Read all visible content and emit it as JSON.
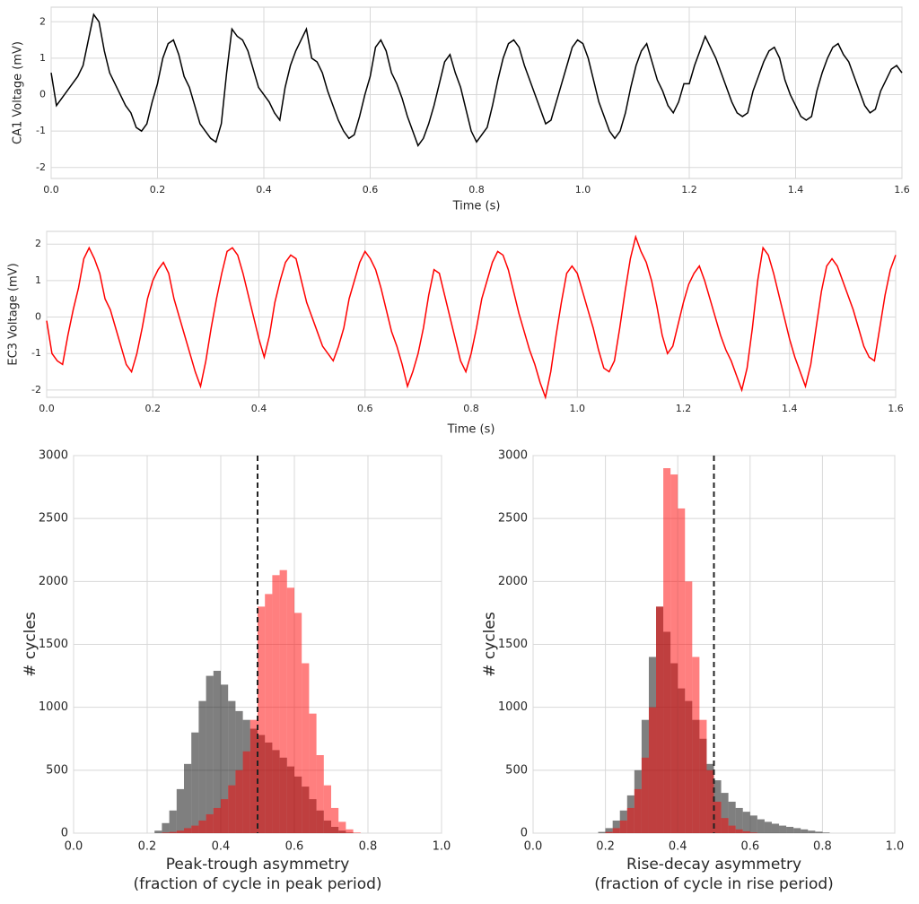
{
  "chart_data": [
    {
      "type": "line",
      "xlabel": "Time (s)",
      "ylabel": "CA1 Voltage (mV)",
      "grid": true,
      "xlim": [
        0,
        1.6
      ],
      "ylim": [
        -2.3,
        2.4
      ],
      "xticks": [
        {
          "value": 0,
          "label": "0.0"
        },
        0.2,
        0.4,
        0.6,
        0.8,
        {
          "value": 1,
          "label": "1.0"
        },
        1.2,
        1.4,
        1.6
      ],
      "yticks": [
        -2,
        -1,
        0,
        1,
        2
      ],
      "x": [
        0,
        0.01,
        0.02,
        0.03,
        0.04,
        0.05,
        0.06,
        0.07,
        0.08,
        0.09,
        0.1,
        0.11,
        0.12,
        0.13,
        0.14,
        0.15,
        0.16,
        0.17,
        0.18,
        0.19,
        0.2,
        0.21,
        0.22,
        0.23,
        0.24,
        0.25,
        0.26,
        0.27,
        0.28,
        0.29,
        0.3,
        0.31,
        0.32,
        0.33,
        0.34,
        0.35,
        0.36,
        0.37,
        0.38,
        0.39,
        0.4,
        0.41,
        0.42,
        0.43,
        0.44,
        0.45,
        0.46,
        0.47,
        0.48,
        0.49,
        0.5,
        0.51,
        0.52,
        0.53,
        0.54,
        0.55,
        0.56,
        0.57,
        0.58,
        0.59,
        0.6,
        0.61,
        0.62,
        0.63,
        0.64,
        0.65,
        0.66,
        0.67,
        0.68,
        0.69,
        0.7,
        0.71,
        0.72,
        0.73,
        0.74,
        0.75,
        0.76,
        0.77,
        0.78,
        0.79,
        0.8,
        0.81,
        0.82,
        0.83,
        0.84,
        0.85,
        0.86,
        0.87,
        0.88,
        0.89,
        0.9,
        0.91,
        0.92,
        0.93,
        0.94,
        0.95,
        0.96,
        0.97,
        0.98,
        0.99,
        1,
        1.01,
        1.02,
        1.03,
        1.04,
        1.05,
        1.06,
        1.07,
        1.08,
        1.09,
        1.1,
        1.11,
        1.12,
        1.13,
        1.14,
        1.15,
        1.16,
        1.17,
        1.18,
        1.19,
        1.2,
        1.21,
        1.22,
        1.23,
        1.24,
        1.25,
        1.26,
        1.27,
        1.28,
        1.29,
        1.3,
        1.31,
        1.32,
        1.33,
        1.34,
        1.35,
        1.36,
        1.37,
        1.38,
        1.39,
        1.4,
        1.41,
        1.42,
        1.43,
        1.44,
        1.45,
        1.46,
        1.47,
        1.48,
        1.49,
        1.5,
        1.51,
        1.52,
        1.53,
        1.54,
        1.55,
        1.56,
        1.57,
        1.58,
        1.59,
        1.6
      ],
      "series": [
        {
          "color": "#000000",
          "values": [
            0.6,
            -0.3,
            -0.1,
            0.1,
            0.3,
            0.5,
            0.8,
            1.5,
            2.2,
            2.0,
            1.2,
            0.6,
            0.3,
            0.0,
            -0.3,
            -0.5,
            -0.9,
            -1.0,
            -0.8,
            -0.2,
            0.3,
            1.0,
            1.4,
            1.5,
            1.1,
            0.5,
            0.2,
            -0.3,
            -0.8,
            -1.0,
            -1.2,
            -1.3,
            -0.8,
            0.6,
            1.8,
            1.6,
            1.5,
            1.2,
            0.7,
            0.2,
            0.0,
            -0.2,
            -0.5,
            -0.7,
            0.2,
            0.8,
            1.2,
            1.5,
            1.8,
            1.0,
            0.9,
            0.6,
            0.1,
            -0.3,
            -0.7,
            -1.0,
            -1.2,
            -1.1,
            -0.6,
            0.0,
            0.5,
            1.3,
            1.5,
            1.2,
            0.6,
            0.3,
            -0.1,
            -0.6,
            -1.0,
            -1.4,
            -1.2,
            -0.8,
            -0.3,
            0.3,
            0.9,
            1.1,
            0.6,
            0.2,
            -0.4,
            -1.0,
            -1.3,
            -1.1,
            -0.9,
            -0.3,
            0.4,
            1.0,
            1.4,
            1.5,
            1.3,
            0.8,
            0.4,
            0.0,
            -0.4,
            -0.8,
            -0.7,
            -0.2,
            0.3,
            0.8,
            1.3,
            1.5,
            1.4,
            1.0,
            0.4,
            -0.2,
            -0.6,
            -1.0,
            -1.2,
            -1.0,
            -0.5,
            0.2,
            0.8,
            1.2,
            1.4,
            0.9,
            0.4,
            0.1,
            -0.3,
            -0.5,
            -0.2,
            0.3,
            0.3,
            0.8,
            1.2,
            1.6,
            1.3,
            1.0,
            0.6,
            0.2,
            -0.2,
            -0.5,
            -0.6,
            -0.5,
            0.1,
            0.5,
            0.9,
            1.2,
            1.3,
            1.0,
            0.4,
            0.0,
            -0.3,
            -0.6,
            -0.7,
            -0.6,
            0.1,
            0.6,
            1.0,
            1.3,
            1.4,
            1.1,
            0.9,
            0.5,
            0.1,
            -0.3,
            -0.5,
            -0.4,
            0.1,
            0.4,
            0.7,
            0.8,
            0.6
          ]
        }
      ]
    },
    {
      "type": "line",
      "xlabel": "Time (s)",
      "ylabel": "EC3 Voltage (mV)",
      "grid": true,
      "xlim": [
        0,
        1.6
      ],
      "ylim": [
        -2.2,
        2.35
      ],
      "xticks": [
        {
          "value": 0,
          "label": "0.0"
        },
        0.2,
        0.4,
        0.6,
        0.8,
        {
          "value": 1,
          "label": "1.0"
        },
        1.2,
        1.4,
        1.6
      ],
      "yticks": [
        -2,
        -1,
        0,
        1,
        2
      ],
      "x": [
        0,
        0.01,
        0.02,
        0.03,
        0.04,
        0.05,
        0.06,
        0.07,
        0.08,
        0.09,
        0.1,
        0.11,
        0.12,
        0.13,
        0.14,
        0.15,
        0.16,
        0.17,
        0.18,
        0.19,
        0.2,
        0.21,
        0.22,
        0.23,
        0.24,
        0.25,
        0.26,
        0.27,
        0.28,
        0.29,
        0.3,
        0.31,
        0.32,
        0.33,
        0.34,
        0.35,
        0.36,
        0.37,
        0.38,
        0.39,
        0.4,
        0.41,
        0.42,
        0.43,
        0.44,
        0.45,
        0.46,
        0.47,
        0.48,
        0.49,
        0.5,
        0.51,
        0.52,
        0.53,
        0.54,
        0.55,
        0.56,
        0.57,
        0.58,
        0.59,
        0.6,
        0.61,
        0.62,
        0.63,
        0.64,
        0.65,
        0.66,
        0.67,
        0.68,
        0.69,
        0.7,
        0.71,
        0.72,
        0.73,
        0.74,
        0.75,
        0.76,
        0.77,
        0.78,
        0.79,
        0.8,
        0.81,
        0.82,
        0.83,
        0.84,
        0.85,
        0.86,
        0.87,
        0.88,
        0.89,
        0.9,
        0.91,
        0.92,
        0.93,
        0.94,
        0.95,
        0.96,
        0.97,
        0.98,
        0.99,
        1,
        1.01,
        1.02,
        1.03,
        1.04,
        1.05,
        1.06,
        1.07,
        1.08,
        1.09,
        1.1,
        1.11,
        1.12,
        1.13,
        1.14,
        1.15,
        1.16,
        1.17,
        1.18,
        1.19,
        1.2,
        1.21,
        1.22,
        1.23,
        1.24,
        1.25,
        1.26,
        1.27,
        1.28,
        1.29,
        1.3,
        1.31,
        1.32,
        1.33,
        1.34,
        1.35,
        1.36,
        1.37,
        1.38,
        1.39,
        1.4,
        1.41,
        1.42,
        1.43,
        1.44,
        1.45,
        1.46,
        1.47,
        1.48,
        1.49,
        1.5,
        1.51,
        1.52,
        1.53,
        1.54,
        1.55,
        1.56,
        1.57,
        1.58,
        1.59,
        1.6
      ],
      "series": [
        {
          "color": "#ff0000",
          "values": [
            -0.1,
            -1.0,
            -1.2,
            -1.3,
            -0.5,
            0.2,
            0.8,
            1.6,
            1.9,
            1.6,
            1.2,
            0.5,
            0.2,
            -0.3,
            -0.8,
            -1.3,
            -1.5,
            -1.0,
            -0.3,
            0.5,
            1.0,
            1.3,
            1.5,
            1.2,
            0.5,
            0.0,
            -0.5,
            -1.0,
            -1.5,
            -1.9,
            -1.2,
            -0.3,
            0.5,
            1.2,
            1.8,
            1.9,
            1.7,
            1.2,
            0.6,
            0.0,
            -0.6,
            -1.1,
            -0.5,
            0.4,
            1.0,
            1.5,
            1.7,
            1.6,
            1.0,
            0.4,
            0.0,
            -0.4,
            -0.8,
            -1.0,
            -1.2,
            -0.8,
            -0.3,
            0.5,
            1.0,
            1.5,
            1.8,
            1.6,
            1.3,
            0.8,
            0.2,
            -0.4,
            -0.8,
            -1.3,
            -1.9,
            -1.5,
            -1.0,
            -0.3,
            0.6,
            1.3,
            1.2,
            0.6,
            0.0,
            -0.6,
            -1.2,
            -1.5,
            -1.0,
            -0.3,
            0.5,
            1.0,
            1.5,
            1.8,
            1.7,
            1.3,
            0.7,
            0.1,
            -0.4,
            -0.9,
            -1.3,
            -1.8,
            -2.2,
            -1.5,
            -0.5,
            0.4,
            1.2,
            1.4,
            1.2,
            0.7,
            0.2,
            -0.3,
            -0.9,
            -1.4,
            -1.5,
            -1.2,
            -0.3,
            0.7,
            1.6,
            2.2,
            1.8,
            1.5,
            1.0,
            0.3,
            -0.5,
            -1.0,
            -0.8,
            -0.2,
            0.4,
            0.9,
            1.2,
            1.4,
            1.0,
            0.5,
            0.0,
            -0.5,
            -0.9,
            -1.2,
            -1.6,
            -2.0,
            -1.4,
            -0.3,
            1.0,
            1.9,
            1.7,
            1.2,
            0.6,
            0.0,
            -0.6,
            -1.1,
            -1.5,
            -1.9,
            -1.3,
            -0.3,
            0.7,
            1.4,
            1.6,
            1.4,
            1.0,
            0.6,
            0.2,
            -0.3,
            -0.8,
            -1.1,
            -1.2,
            -0.3,
            0.6,
            1.3,
            1.7
          ]
        }
      ]
    },
    {
      "type": "histogram",
      "xlabel": [
        "Peak-trough asymmetry",
        "(fraction of cycle in peak period)"
      ],
      "ylabel": "# cycles",
      "grid": true,
      "xlim": [
        0,
        1
      ],
      "ylim": [
        0,
        3000
      ],
      "alpha": 0.5,
      "vline": 0.5,
      "xticks": [
        {
          "value": 0,
          "label": "0.0"
        },
        0.2,
        0.4,
        0.6,
        0.8,
        {
          "value": 1,
          "label": "1.0"
        }
      ],
      "yticks": [
        0,
        500,
        1000,
        1500,
        2000,
        2500,
        3000
      ],
      "bins": [
        0.2,
        0.22,
        0.24,
        0.26,
        0.28,
        0.3,
        0.32,
        0.34,
        0.36,
        0.38,
        0.4,
        0.42,
        0.44,
        0.46,
        0.48,
        0.5,
        0.52,
        0.54,
        0.56,
        0.58,
        0.6,
        0.62,
        0.64,
        0.66,
        0.68,
        0.7,
        0.72,
        0.74,
        0.76,
        0.78,
        0.8
      ],
      "series": [
        {
          "color": "#000000",
          "values": [
            0,
            20,
            80,
            180,
            350,
            550,
            800,
            1050,
            1250,
            1290,
            1180,
            1050,
            970,
            900,
            830,
            780,
            720,
            660,
            600,
            530,
            450,
            370,
            270,
            180,
            100,
            50,
            20,
            5,
            0,
            0
          ]
        },
        {
          "color": "#ff0000",
          "values": [
            0,
            0,
            5,
            10,
            20,
            40,
            60,
            100,
            150,
            200,
            270,
            380,
            500,
            650,
            900,
            1800,
            1900,
            2050,
            2090,
            1950,
            1750,
            1350,
            950,
            620,
            380,
            200,
            90,
            30,
            5,
            0
          ]
        }
      ]
    },
    {
      "type": "histogram",
      "xlabel": [
        "Rise-decay asymmetry",
        "(fraction of cycle in rise period)"
      ],
      "ylabel": "# cycles",
      "grid": true,
      "xlim": [
        0,
        1
      ],
      "ylim": [
        0,
        3000
      ],
      "alpha": 0.5,
      "vline": 0.5,
      "xticks": [
        {
          "value": 0,
          "label": "0.0"
        },
        0.2,
        0.4,
        0.6,
        0.8,
        {
          "value": 1,
          "label": "1.0"
        }
      ],
      "yticks": [
        0,
        500,
        1000,
        1500,
        2000,
        2500,
        3000
      ],
      "bins": [
        0.16,
        0.18,
        0.2,
        0.22,
        0.24,
        0.26,
        0.28,
        0.3,
        0.32,
        0.34,
        0.36,
        0.38,
        0.4,
        0.42,
        0.44,
        0.46,
        0.48,
        0.5,
        0.52,
        0.54,
        0.56,
        0.58,
        0.6,
        0.62,
        0.64,
        0.66,
        0.68,
        0.7,
        0.72,
        0.74,
        0.76,
        0.78,
        0.8,
        0.82,
        0.84
      ],
      "series": [
        {
          "color": "#000000",
          "values": [
            0,
            10,
            40,
            100,
            180,
            300,
            500,
            900,
            1400,
            1800,
            1600,
            1350,
            1150,
            1050,
            900,
            750,
            550,
            420,
            320,
            250,
            200,
            170,
            140,
            110,
            90,
            75,
            60,
            50,
            40,
            30,
            20,
            12,
            5,
            0
          ]
        },
        {
          "color": "#ff0000",
          "values": [
            0,
            0,
            10,
            40,
            100,
            200,
            350,
            600,
            1000,
            1800,
            2900,
            2850,
            2580,
            2000,
            1400,
            900,
            500,
            250,
            120,
            60,
            30,
            15,
            5,
            0,
            0,
            0,
            0,
            0,
            0,
            0,
            0,
            0,
            0,
            0
          ]
        }
      ]
    }
  ]
}
